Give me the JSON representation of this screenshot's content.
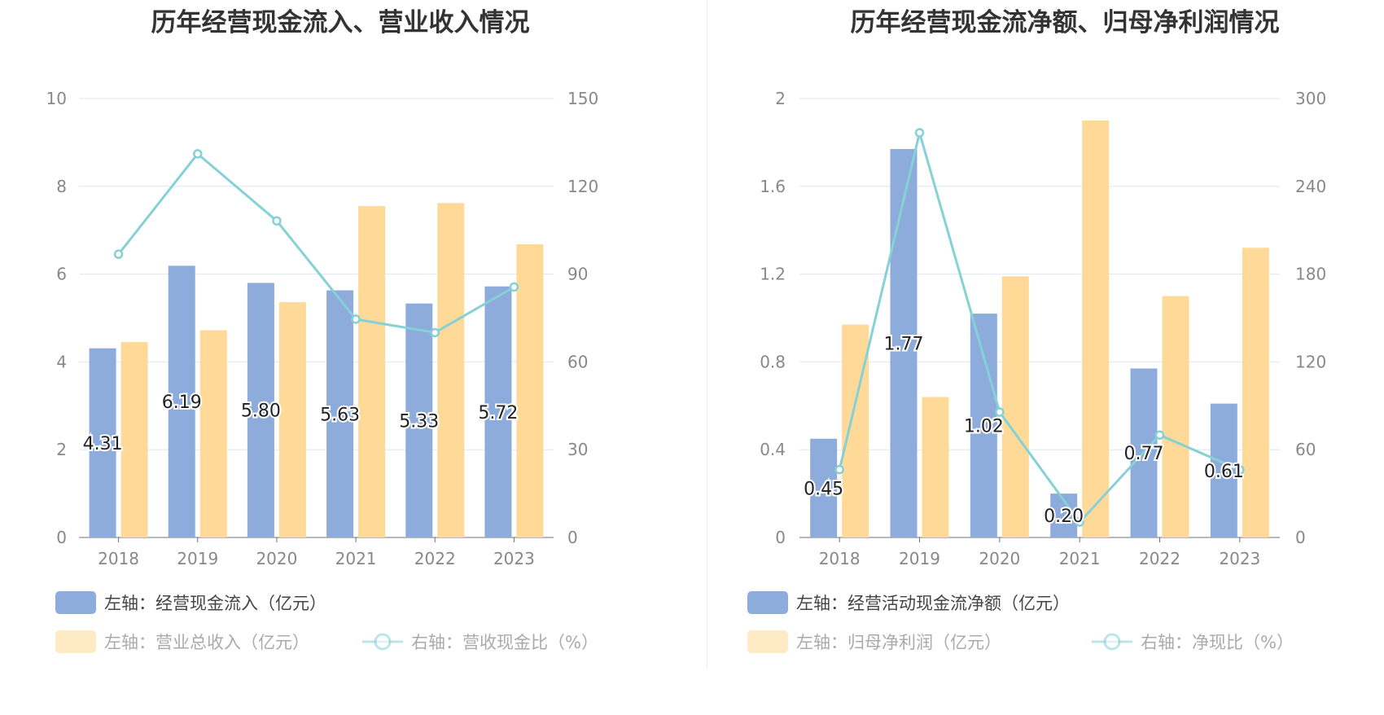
{
  "chart_data": [
    {
      "type": "bar",
      "title": "历年经营现金流入、营业收入情况",
      "categories": [
        "2018",
        "2019",
        "2020",
        "2021",
        "2022",
        "2023"
      ],
      "left_axis": {
        "min": 0,
        "max": 10,
        "ticks": [
          "0",
          "2",
          "4",
          "6",
          "8",
          "10"
        ]
      },
      "right_axis": {
        "min": 0,
        "max": 150,
        "ticks": [
          "0",
          "30",
          "60",
          "90",
          "120",
          "150"
        ]
      },
      "series": [
        {
          "name": "左轴：经营现金流入（亿元）",
          "kind": "bar",
          "axis": "left",
          "color": "#8eacdb",
          "values": [
            4.31,
            6.19,
            5.8,
            5.63,
            5.33,
            5.72
          ],
          "labels": [
            "4.31",
            "6.19",
            "5.80",
            "5.63",
            "5.33",
            "5.72"
          ]
        },
        {
          "name": "左轴：营业总收入（亿元）",
          "kind": "bar",
          "axis": "left",
          "color": "#ffd998",
          "values": [
            4.45,
            4.72,
            5.36,
            7.55,
            7.62,
            6.68
          ]
        },
        {
          "name": "右轴：营收现金比（%）",
          "kind": "line",
          "axis": "right",
          "color": "#86d1d6",
          "values": [
            96.8,
            131.1,
            108.2,
            74.6,
            70.0,
            85.6
          ]
        }
      ]
    },
    {
      "type": "bar",
      "title": "历年经营现金流净额、归母净利润情况",
      "categories": [
        "2018",
        "2019",
        "2020",
        "2021",
        "2022",
        "2023"
      ],
      "left_axis": {
        "min": 0,
        "max": 2,
        "ticks": [
          "0",
          "0.4",
          "0.8",
          "1.2",
          "1.6",
          "2"
        ]
      },
      "right_axis": {
        "min": 0,
        "max": 300,
        "ticks": [
          "0",
          "60",
          "120",
          "180",
          "240",
          "300"
        ]
      },
      "series": [
        {
          "name": "左轴：经营活动现金流净额（亿元）",
          "kind": "bar",
          "axis": "left",
          "color": "#8eacdb",
          "values": [
            0.45,
            1.77,
            1.02,
            0.2,
            0.77,
            0.61
          ],
          "labels": [
            "0.45",
            "1.77",
            "1.02",
            "0.20",
            "0.77",
            "0.61"
          ]
        },
        {
          "name": "左轴：归母净利润（亿元）",
          "kind": "bar",
          "axis": "left",
          "color": "#ffd998",
          "values": [
            0.97,
            0.64,
            1.19,
            1.9,
            1.1,
            1.32
          ]
        },
        {
          "name": "右轴：净现比（%）",
          "kind": "line",
          "axis": "right",
          "color": "#86d1d6",
          "values": [
            46.4,
            276.6,
            85.7,
            10.5,
            70.0,
            46.2
          ]
        }
      ]
    }
  ]
}
